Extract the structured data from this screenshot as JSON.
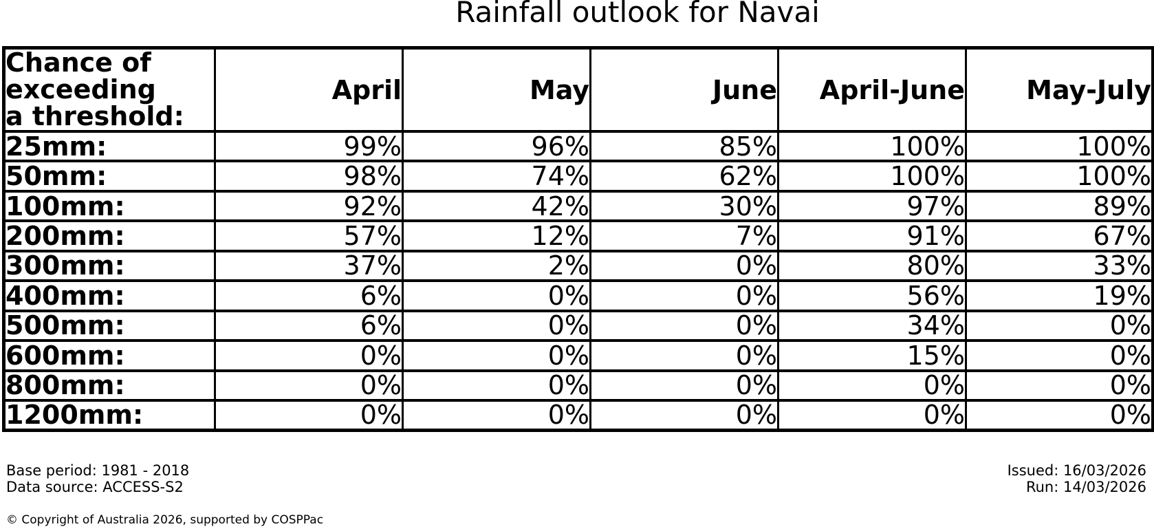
{
  "title": "Rainfall outlook for Navai",
  "table": {
    "corner_header": [
      "Chance of",
      "exceeding",
      "a threshold:"
    ],
    "columns": [
      "April",
      "May",
      "June",
      "April-June",
      "May-July"
    ],
    "rows": [
      {
        "label": "25mm:",
        "values": [
          "99%",
          "96%",
          "85%",
          "100%",
          "100%"
        ]
      },
      {
        "label": "50mm:",
        "values": [
          "98%",
          "74%",
          "62%",
          "100%",
          "100%"
        ]
      },
      {
        "label": "100mm:",
        "values": [
          "92%",
          "42%",
          "30%",
          "97%",
          "89%"
        ]
      },
      {
        "label": "200mm:",
        "values": [
          "57%",
          "12%",
          "7%",
          "91%",
          "67%"
        ]
      },
      {
        "label": "300mm:",
        "values": [
          "37%",
          "2%",
          "0%",
          "80%",
          "33%"
        ]
      },
      {
        "label": "400mm:",
        "values": [
          "6%",
          "0%",
          "0%",
          "56%",
          "19%"
        ]
      },
      {
        "label": "500mm:",
        "values": [
          "6%",
          "0%",
          "0%",
          "34%",
          "0%"
        ]
      },
      {
        "label": "600mm:",
        "values": [
          "0%",
          "0%",
          "0%",
          "15%",
          "0%"
        ]
      },
      {
        "label": "800mm:",
        "values": [
          "0%",
          "0%",
          "0%",
          "0%",
          "0%"
        ]
      },
      {
        "label": "1200mm:",
        "values": [
          "0%",
          "0%",
          "0%",
          "0%",
          "0%"
        ]
      }
    ]
  },
  "footer": {
    "base_period": "Base period: 1981 - 2018",
    "data_source": "Data source: ACCESS-S2",
    "issued": "Issued: 16/03/2026",
    "run": "Run: 14/03/2026",
    "copyright": "© Copyright of Australia 2026, supported by COSPPac"
  },
  "colors": {
    "text": "#000000",
    "background": "#ffffff",
    "border": "#000000"
  },
  "chart_data": {
    "type": "table",
    "title": "Rainfall outlook for Navai",
    "row_header_label": "Chance of exceeding a threshold:",
    "columns": [
      "April",
      "May",
      "June",
      "April-June",
      "May-July"
    ],
    "thresholds_mm": [
      25,
      50,
      100,
      200,
      300,
      400,
      500,
      600,
      800,
      1200
    ],
    "values_percent": [
      [
        99,
        96,
        85,
        100,
        100
      ],
      [
        98,
        74,
        62,
        100,
        100
      ],
      [
        92,
        42,
        30,
        97,
        89
      ],
      [
        57,
        12,
        7,
        91,
        67
      ],
      [
        37,
        2,
        0,
        80,
        33
      ],
      [
        6,
        0,
        0,
        56,
        19
      ],
      [
        6,
        0,
        0,
        34,
        0
      ],
      [
        0,
        0,
        0,
        15,
        0
      ],
      [
        0,
        0,
        0,
        0,
        0
      ],
      [
        0,
        0,
        0,
        0,
        0
      ]
    ],
    "base_period": "1981 - 2018",
    "data_source": "ACCESS-S2",
    "issued_date": "16/03/2026",
    "run_date": "14/03/2026"
  }
}
